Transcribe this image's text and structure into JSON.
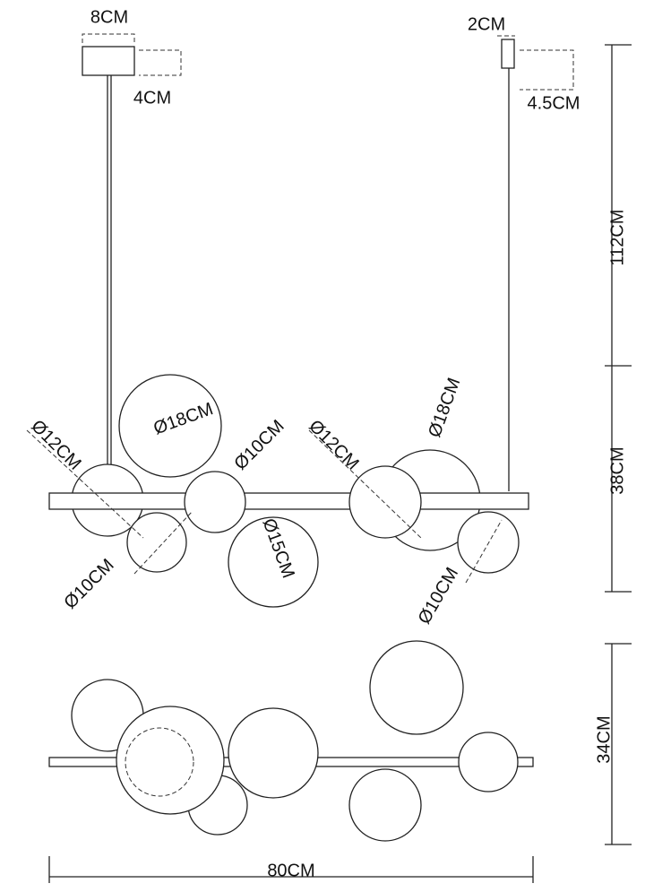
{
  "labels": [
    "8CM",
    "4CM",
    "2CM",
    "4.5CM",
    "112CM",
    "38CM",
    "Ø18CM",
    "Ø12CM",
    "Ø10CM",
    "Ø12CM",
    "Ø18CM",
    "Ø15CM",
    "Ø10CM",
    "Ø10CM",
    "34CM",
    "80CM"
  ]
}
